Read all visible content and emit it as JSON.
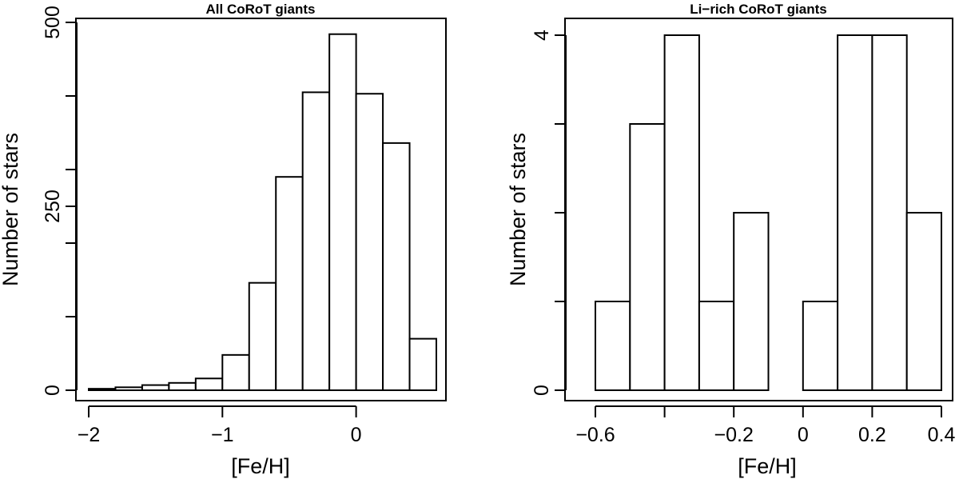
{
  "chart_data": [
    {
      "type": "bar",
      "title": "All CoRoT giants",
      "xlabel": "[Fe/H]",
      "ylabel": "Number of stars",
      "xlim": [
        -2.0,
        0.6
      ],
      "ylim": [
        0,
        500
      ],
      "x_ticks": [
        -2,
        -1,
        0
      ],
      "x_tick_labels": [
        "−2",
        "−1",
        "0"
      ],
      "y_ticks": [
        0,
        100,
        200,
        250,
        300,
        400,
        500
      ],
      "y_tick_labels": [
        "0",
        "",
        "",
        "250",
        "",
        "",
        "500"
      ],
      "bins": [
        {
          "x0": -2.0,
          "x1": -1.8,
          "value": 2
        },
        {
          "x0": -1.8,
          "x1": -1.6,
          "value": 4
        },
        {
          "x0": -1.6,
          "x1": -1.4,
          "value": 7
        },
        {
          "x0": -1.4,
          "x1": -1.2,
          "value": 10
        },
        {
          "x0": -1.2,
          "x1": -1.0,
          "value": 16
        },
        {
          "x0": -1.0,
          "x1": -0.8,
          "value": 48
        },
        {
          "x0": -0.8,
          "x1": -0.6,
          "value": 146
        },
        {
          "x0": -0.6,
          "x1": -0.4,
          "value": 290
        },
        {
          "x0": -0.4,
          "x1": -0.2,
          "value": 405
        },
        {
          "x0": -0.2,
          "x1": 0.0,
          "value": 484
        },
        {
          "x0": 0.0,
          "x1": 0.2,
          "value": 403
        },
        {
          "x0": 0.2,
          "x1": 0.4,
          "value": 336
        },
        {
          "x0": 0.4,
          "x1": 0.6,
          "value": 70
        }
      ]
    },
    {
      "type": "bar",
      "title": "Li−rich CoRoT giants",
      "xlabel": "[Fe/H]",
      "ylabel": "Number of stars",
      "xlim": [
        -0.6,
        0.4
      ],
      "ylim": [
        0,
        4
      ],
      "x_ticks": [
        -0.6,
        -0.4,
        -0.2,
        0,
        0.2,
        0.4
      ],
      "x_tick_labels": [
        "−0.6",
        "",
        "−0.2",
        "0",
        "0.2",
        "0.4"
      ],
      "y_ticks": [
        0,
        1,
        2,
        3,
        4
      ],
      "y_tick_labels": [
        "0",
        "",
        "",
        "",
        "4"
      ],
      "bins": [
        {
          "x0": -0.6,
          "x1": -0.5,
          "value": 1
        },
        {
          "x0": -0.5,
          "x1": -0.4,
          "value": 3
        },
        {
          "x0": -0.4,
          "x1": -0.3,
          "value": 4
        },
        {
          "x0": -0.3,
          "x1": -0.2,
          "value": 1
        },
        {
          "x0": -0.2,
          "x1": -0.1,
          "value": 2
        },
        {
          "x0": -0.1,
          "x1": 0.0,
          "value": 0
        },
        {
          "x0": 0.0,
          "x1": 0.1,
          "value": 1
        },
        {
          "x0": 0.1,
          "x1": 0.2,
          "value": 4
        },
        {
          "x0": 0.2,
          "x1": 0.3,
          "value": 4
        },
        {
          "x0": 0.3,
          "x1": 0.4,
          "value": 2
        }
      ]
    }
  ]
}
